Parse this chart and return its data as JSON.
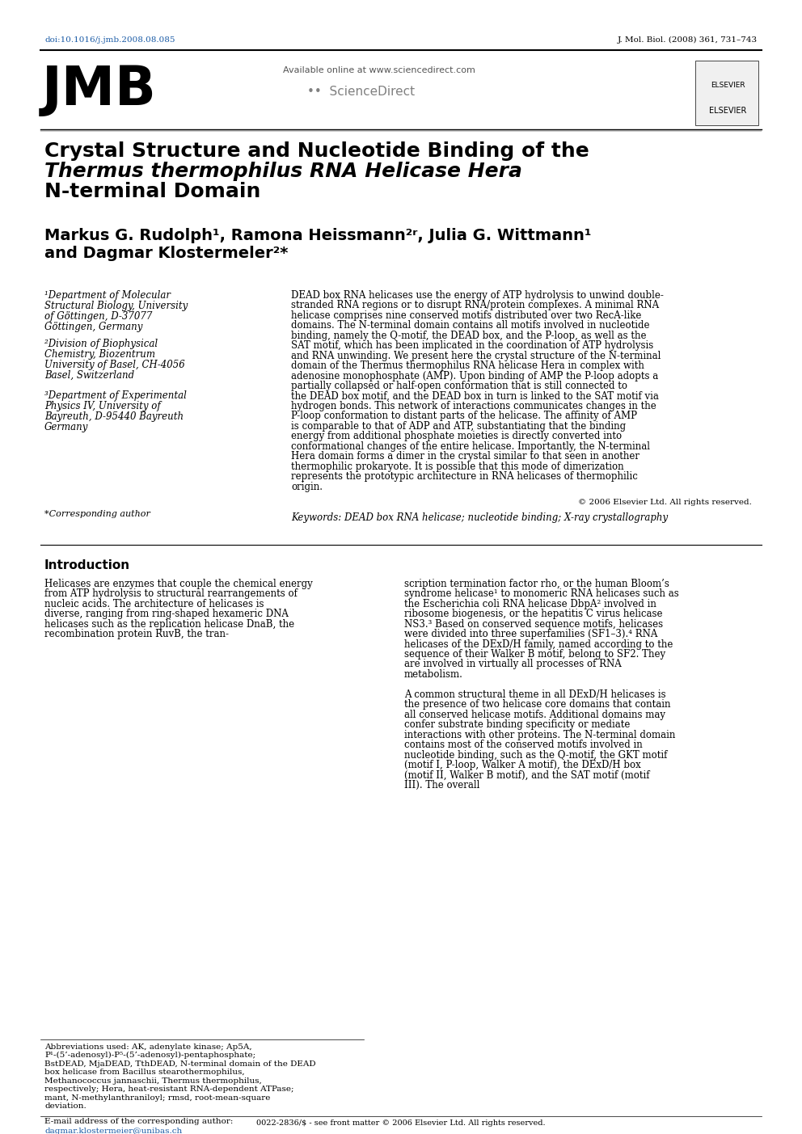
{
  "bg_color": "#ffffff",
  "doi_text": "doi:10.1016/j.jmb.2008.08.085",
  "journal_ref": "J. Mol. Biol. (2008) 361, 731–743",
  "journal_logo": "JMB",
  "available_online": "Available online at www.sciencedirect.com",
  "sciencedirect_text": "ScienceDirect",
  "elsevier_text": "ELSEVIER",
  "title_line1": "Crystal Structure and Nucleotide Binding of the",
  "title_line2": "Thermus thermophilus RNA Helicase Hera",
  "title_line3": "N-terminal Domain",
  "authors_line1": "Markus G. Rudolph¹, Ramona Heissmann²ʳ, Julia G. Wittmann¹",
  "authors_line2": "and Dagmar Klostermeler²*",
  "affil1": "¹Department of Molecular\nStructural Biology, University\nof Göttingen, D-37077\nGöttingen, Germany",
  "affil2": "²Division of Biophysical\nChemistry, Biozentrum\nUniversity of Basel, CH-4056\nBasel, Switzerland",
  "affil3": "³Department of Experimental\nPhysics IV, University of\nBayreuth, D-95440 Bayreuth\nGermany",
  "corresponding_author": "*Corresponding author",
  "abstract": "DEAD box RNA helicases use the energy of ATP hydrolysis to unwind double-stranded RNA regions or to disrupt RNA/protein complexes. A minimal RNA helicase comprises nine conserved motifs distributed over two RecA-like domains. The N-terminal domain contains all motifs involved in nucleotide binding, namely the Q-motif, the DEAD box, and the P-loop, as well as the SAT motif, which has been implicated in the coordination of ATP hydrolysis and RNA unwinding. We present here the crystal structure of the N-terminal domain of the Thermus thermophilus RNA helicase Hera in complex with adenosine monophosphate (AMP). Upon binding of AMP the P-loop adopts a partially collapsed or half-open conformation that is still connected to the DEAD box motif, and the DEAD box in turn is linked to the SAT motif via hydrogen bonds. This network of interactions communicates changes in the P-loop conformation to distant parts of the helicase. The affinity of AMP is comparable to that of ADP and ATP, substantiating that the binding energy from additional phosphate moieties is directly converted into conformational changes of the entire helicase. Importantly, the N-terminal Hera domain forms a dimer in the crystal similar to that seen in another thermophilic prokaryote. It is possible that this mode of dimerization represents the prototypic architecture in RNA helicases of thermophilic origin.",
  "copyright": "© 2006 Elsevier Ltd. All rights reserved.",
  "keywords_label": "Keywords:",
  "keywords": "DEAD box RNA helicase; nucleotide binding; X-ray crystallography",
  "intro_heading": "Introduction",
  "intro_col1": "Helicases are enzymes that couple the chemical energy from ATP hydrolysis to structural rearrangements of nucleic acids. The architecture of helicases is diverse, ranging from ring-shaped hexameric DNA helicases such as the replication helicase DnaB, the recombination protein RuvB, the tran-",
  "intro_col2": "scription termination factor rho, or the human Bloom’s syndrome helicase¹ to monomeric RNA helicases such as the Escherichia coli RNA helicase DbpA² involved in ribosome biogenesis, or the hepatitis C virus helicase NS3.³ Based on conserved sequence motifs, helicases were divided into three superfamilies (SF1–3).⁴ RNA helicases of the DExD/H family, named according to the sequence of their Walker B motif, belong to SF2. They are involved in virtually all processes of RNA metabolism.",
  "intro_col2b": "A common structural theme in all DExD/H helicases is the presence of two helicase core domains that contain all conserved helicase motifs. Additional domains may confer substrate binding specificity or mediate interactions with other proteins. The N-terminal domain contains most of the conserved motifs involved in nucleotide binding, such as the Q-motif, the GKT motif (motif I, P-loop, Walker A motif), the DExD/H box (motif II, Walker B motif), and the SAT motif (motif III). The overall",
  "footnote": "Abbreviations used: AK, adenylate kinase; Ap5A, P¹-(5’-adenosyl)-P⁵-(5’-adenosyl)-pentaphosphate; BstDEAD, MjaDEAD, TthDEAD, N-terminal domain of the DEAD box helicase from Bacillus stearothermophilus, Methanococcus jannaschii, Thermus thermophilus, respectively; Hera, heat-resistant RNA-dependent ATPase; mant, N-methylanthraniloyl; rmsd, root-mean-square deviation.",
  "email_label": "E-mail address of the corresponding author:",
  "email": "dagmar.klostermeier@unibas.ch",
  "footer": "0022-2836/$ - see front matter © 2006 Elsevier Ltd. All rights reserved."
}
